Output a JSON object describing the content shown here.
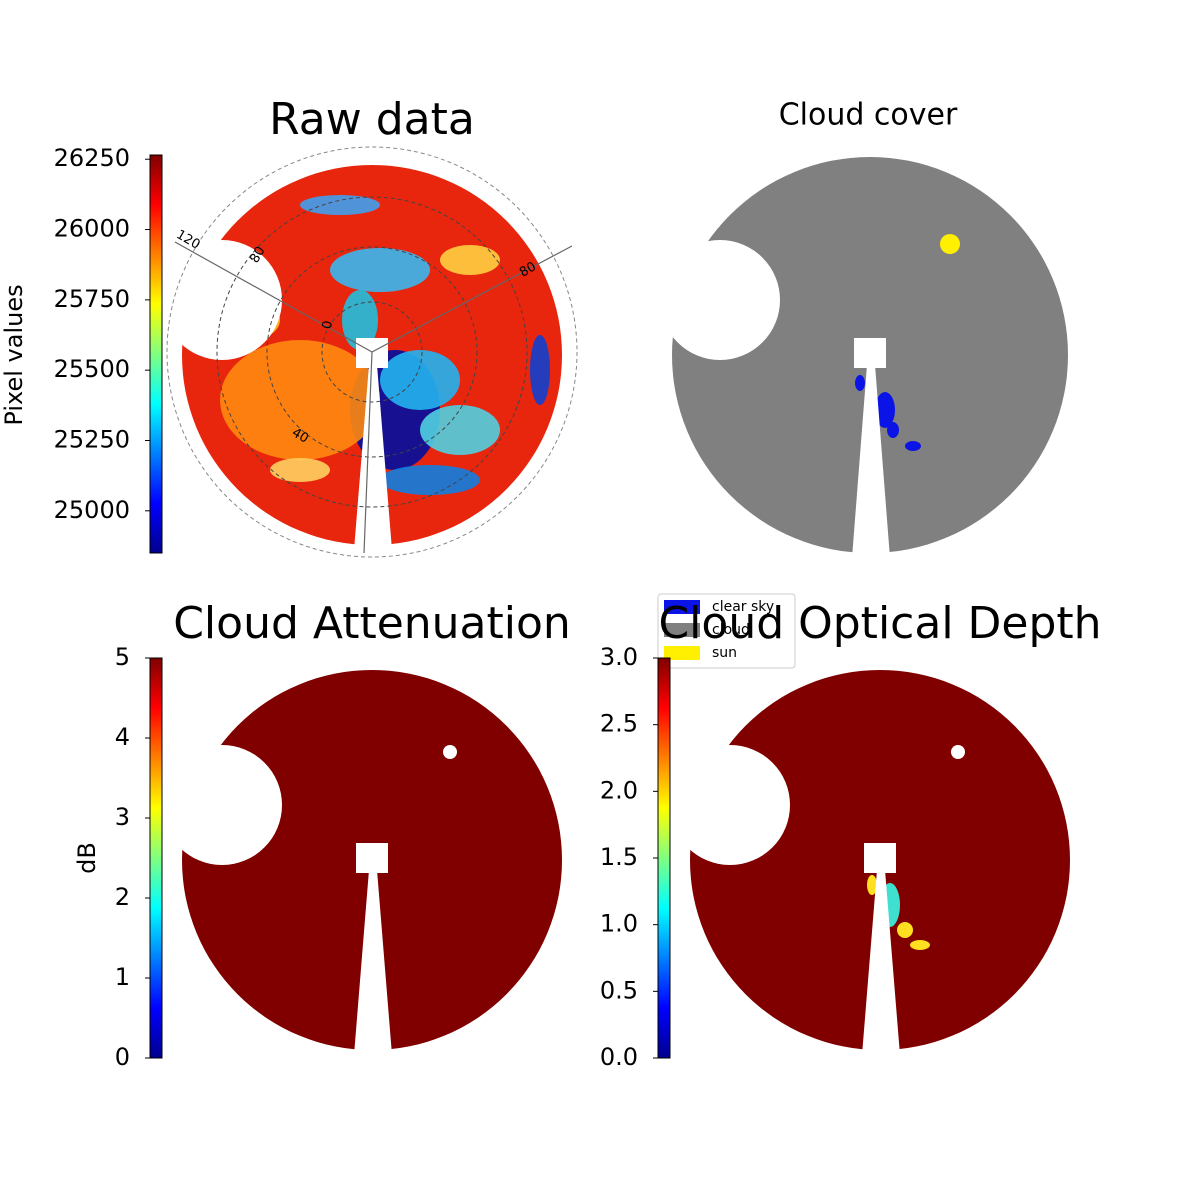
{
  "chart_data": [
    {
      "type": "image",
      "title": "Raw data",
      "ylabel": "Pixel values",
      "colormap": "jet",
      "ylim": [
        24850,
        26265
      ],
      "yticks": [
        25000,
        25250,
        25500,
        25750,
        26000,
        26250
      ],
      "annotations": [
        "120",
        "80",
        "0",
        "40",
        "80"
      ]
    },
    {
      "type": "image",
      "title": "Cloud cover",
      "classes": [
        {
          "name": "clear sky",
          "color": "#0a14e6"
        },
        {
          "name": "cloud",
          "color": "#808080"
        },
        {
          "name": "sun",
          "color": "#ffef00"
        }
      ]
    },
    {
      "type": "image",
      "title": "Cloud Attenuation",
      "ylabel": "dB",
      "colormap": "jet",
      "ylim": [
        0,
        5
      ],
      "yticks": [
        0,
        1,
        2,
        3,
        4,
        5
      ]
    },
    {
      "type": "image",
      "title": "Cloud Optical Depth",
      "colormap": "jet",
      "ylim": [
        0,
        3
      ],
      "yticks": [
        {
          "value": 0,
          "label": "0.0"
        },
        0.5,
        {
          "value": 1,
          "label": "1.0"
        },
        1.5,
        {
          "value": 2,
          "label": "2.0"
        },
        2.5,
        {
          "value": 3,
          "label": "3.0"
        }
      ]
    }
  ]
}
